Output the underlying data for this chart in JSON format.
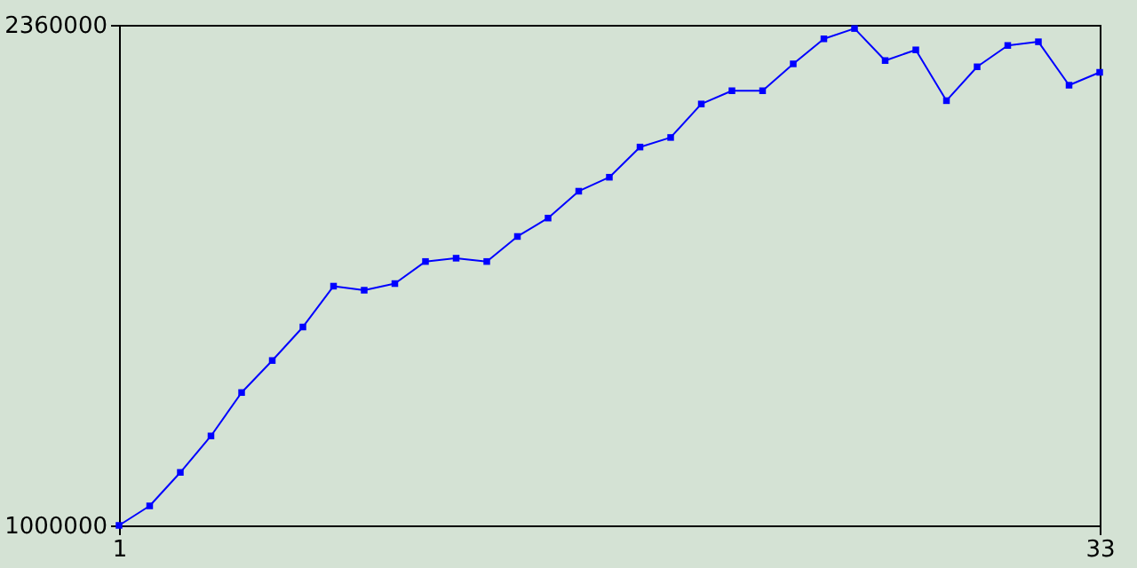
{
  "chart_data": {
    "type": "line",
    "x": [
      1,
      2,
      3,
      4,
      5,
      6,
      7,
      8,
      9,
      10,
      11,
      12,
      13,
      14,
      15,
      16,
      17,
      18,
      19,
      20,
      21,
      22,
      23,
      24,
      25,
      26,
      27,
      28,
      29,
      30,
      31,
      32,
      33
    ],
    "series": [
      {
        "color": "#0000ff",
        "values": [
          1000000,
          1053000,
          1144000,
          1243000,
          1361000,
          1448000,
          1539000,
          1650000,
          1639000,
          1657000,
          1717000,
          1726000,
          1717000,
          1785000,
          1835000,
          1908000,
          1946000,
          2028000,
          2054000,
          2145000,
          2181000,
          2181000,
          2254000,
          2322000,
          2350000,
          2263000,
          2292000,
          2154000,
          2246000,
          2304000,
          2314000,
          2196000,
          2231000
        ]
      }
    ],
    "xlim": [
      1,
      33
    ],
    "xticks": [
      1,
      33
    ],
    "ylim": [
      1000000,
      2360000
    ],
    "yticks": [
      1000000,
      2360000
    ],
    "grid": false,
    "legend": false,
    "marker": "square",
    "line_style": "solid"
  }
}
